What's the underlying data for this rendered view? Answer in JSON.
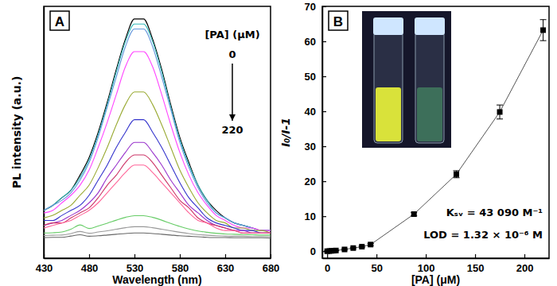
{
  "chart_data": [
    {
      "type": "line",
      "title": "A",
      "x_label": "Wavelength (nm)",
      "y_label": "PL intensity (a.u.)",
      "annotations": [
        "[PA] (μM)",
        "0",
        "220"
      ],
      "xlim": [
        430,
        680
      ],
      "xticks": [
        430,
        480,
        530,
        580,
        630,
        680
      ],
      "ylim": [
        0,
        100
      ],
      "tick_labels": "x",
      "x": [
        430,
        440,
        450,
        460,
        470,
        480,
        490,
        500,
        510,
        520,
        530,
        540,
        550,
        560,
        570,
        580,
        590,
        600,
        610,
        620,
        630,
        640,
        650,
        660,
        670,
        680
      ],
      "series": [
        {
          "color": "#000000",
          "values": [
            19,
            21,
            24,
            27,
            33,
            40,
            50,
            62,
            75,
            87,
            95,
            95,
            87,
            75,
            61,
            48,
            38,
            29,
            23,
            19,
            16,
            14,
            13,
            12,
            11,
            11
          ]
        },
        {
          "color": "#33bbbb",
          "values": [
            19,
            21,
            24,
            27,
            32,
            39,
            49,
            61,
            74,
            86,
            93,
            93,
            86,
            74,
            60,
            47,
            37,
            29,
            23,
            18,
            16,
            14,
            13,
            12,
            11,
            11
          ]
        },
        {
          "color": "#6699dd",
          "values": [
            19,
            21,
            23,
            26,
            31,
            38,
            48,
            60,
            72,
            84,
            91,
            91,
            84,
            72,
            59,
            46,
            36,
            28,
            22,
            18,
            16,
            14,
            13,
            12,
            11,
            11
          ]
        },
        {
          "color": "#ff44ff",
          "values": [
            18,
            19,
            22,
            25,
            29,
            35,
            44,
            54,
            65,
            76,
            82,
            82,
            76,
            65,
            53,
            42,
            33,
            26,
            21,
            17,
            15,
            13,
            12,
            12,
            11,
            11
          ]
        },
        {
          "color": "#99aa33",
          "values": [
            16,
            17,
            19,
            21,
            25,
            29,
            36,
            44,
            53,
            61,
            66,
            66,
            61,
            53,
            44,
            35,
            28,
            22,
            18,
            15,
            14,
            12,
            12,
            11,
            11,
            10
          ]
        },
        {
          "color": "#3333cc",
          "values": [
            15,
            15,
            17,
            19,
            21,
            25,
            31,
            37,
            44,
            50,
            55,
            55,
            50,
            44,
            37,
            30,
            24,
            20,
            16,
            14,
            13,
            12,
            11,
            11,
            10,
            10
          ]
        },
        {
          "color": "#9933cc",
          "values": [
            13,
            14,
            15,
            17,
            19,
            22,
            26,
            32,
            37,
            42,
            46,
            46,
            42,
            37,
            31,
            26,
            21,
            18,
            15,
            13,
            12,
            11,
            11,
            10,
            10,
            10
          ]
        },
        {
          "color": "#cc3366",
          "values": [
            13,
            14,
            14,
            16,
            18,
            20,
            24,
            29,
            33,
            38,
            41,
            41,
            38,
            33,
            28,
            23,
            20,
            16,
            14,
            13,
            12,
            11,
            10,
            10,
            10,
            10
          ]
        },
        {
          "color": "#ff6699",
          "values": [
            12,
            13,
            14,
            15,
            17,
            19,
            22,
            26,
            30,
            34,
            37,
            37,
            34,
            30,
            26,
            22,
            18,
            15,
            14,
            12,
            11,
            11,
            10,
            10,
            10,
            10
          ]
        },
        {
          "color": "#66cc66",
          "values": [
            10,
            10.1,
            10.4,
            11.5,
            13.2,
            11.8,
            12.8,
            13.9,
            15.1,
            16.2,
            16.9,
            16.9,
            16.2,
            15.1,
            13.8,
            12.6,
            11.6,
            10.8,
            10.3,
            9.9,
            9.6,
            9.5,
            9.4,
            9.3,
            9.2,
            9.2
          ]
        },
        {
          "color": "#999999",
          "values": [
            9,
            9.1,
            9.2,
            9.8,
            10.6,
            9.9,
            10.4,
            10.9,
            11.5,
            12.1,
            12.5,
            12.5,
            12.1,
            11.5,
            10.9,
            10.3,
            9.8,
            9.4,
            9.1,
            8.9,
            8.8,
            8.7,
            8.7,
            8.6,
            8.6,
            8.6
          ]
        },
        {
          "color": "#666666",
          "values": [
            8.2,
            8.3,
            8.3,
            8.8,
            9.3,
            8.7,
            8.9,
            9.2,
            9.5,
            9.8,
            10,
            10,
            9.8,
            9.5,
            9.2,
            8.9,
            8.7,
            8.5,
            8.3,
            8.2,
            8.2,
            8.1,
            8.1,
            8.1,
            8.1,
            8
          ]
        }
      ]
    },
    {
      "type": "line",
      "title": "B",
      "x_label": "[PA] (μM)",
      "y_label": "I₀/I-1",
      "annotations": [
        "Kₛᵥ = 43 090 M⁻¹",
        "LOD = 1.32 × 10⁻⁶ M"
      ],
      "xlim": [
        -5,
        225
      ],
      "xticks": [
        0,
        50,
        100,
        150,
        200
      ],
      "ylim": [
        -2,
        70
      ],
      "yticks": [
        0,
        10,
        20,
        30,
        40,
        50,
        60,
        70
      ],
      "x": [
        0,
        2.2,
        4.4,
        6.6,
        8.8,
        17.6,
        26.4,
        35.2,
        44,
        88,
        131,
        175,
        219
      ],
      "series": [
        {
          "color": "#000000",
          "marker": "square",
          "line_style": "solid",
          "values": [
            0,
            0.05,
            0.1,
            0.15,
            0.2,
            0.5,
            0.9,
            1.3,
            1.9,
            10.6,
            22,
            39.8,
            63.2
          ],
          "errors": [
            0.1,
            0.1,
            0.1,
            0.1,
            0.1,
            0.2,
            0.2,
            0.2,
            0.3,
            0.5,
            1,
            2,
            3
          ]
        }
      ]
    }
  ]
}
